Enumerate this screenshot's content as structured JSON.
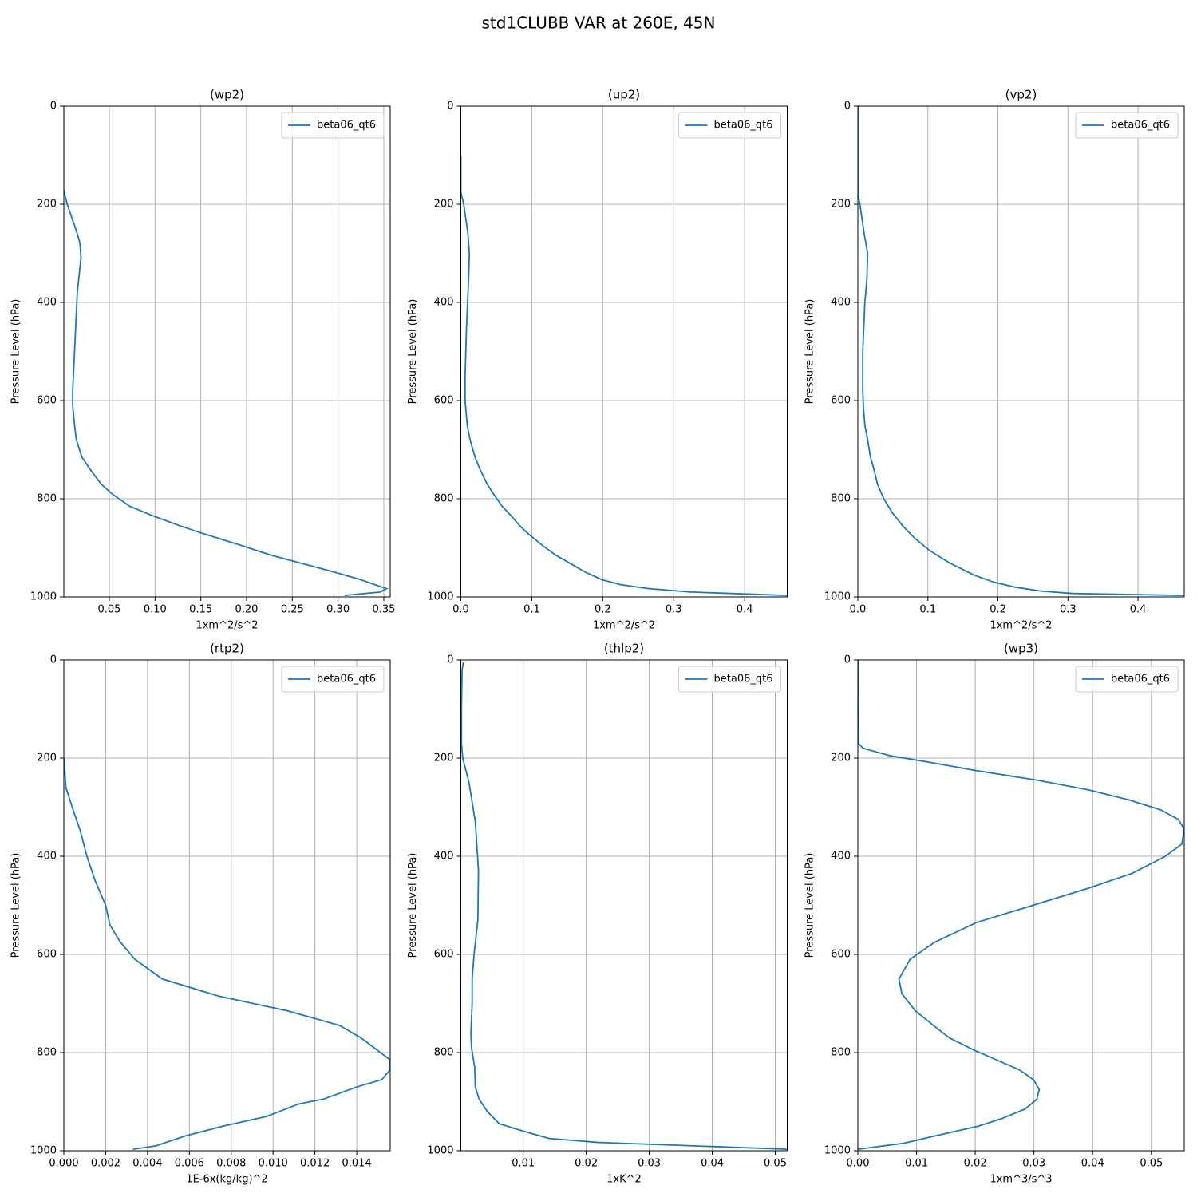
{
  "title": "std1CLUBB VAR at 260E, 45N",
  "chart_data": [
    {
      "type": "line",
      "title": "(wp2)",
      "xlabel": "1xm^2/s^2",
      "ylabel": "Pressure Level (hPa)",
      "y": [
        0,
        170,
        200,
        260,
        280,
        310,
        380,
        500,
        580,
        610,
        650,
        680,
        715,
        740,
        770,
        790,
        815,
        835,
        855,
        870,
        895,
        915,
        930,
        950,
        965,
        975,
        983,
        990,
        997
      ],
      "series": [
        {
          "name": "beta06_qt6",
          "color": "#1f77b4",
          "values": [
            0,
            0,
            0.004,
            0.015,
            0.018,
            0.019,
            0.015,
            0.012,
            0.01,
            0.01,
            0.012,
            0.014,
            0.02,
            0.029,
            0.041,
            0.053,
            0.072,
            0.098,
            0.127,
            0.151,
            0.194,
            0.227,
            0.257,
            0.297,
            0.325,
            0.34,
            0.353,
            0.346,
            0.307
          ]
        }
      ],
      "xlim": [
        0.0003,
        0.357
      ],
      "xticks": [
        0.05,
        {
          "value": 0.1,
          "label": "0.10"
        },
        0.15,
        {
          "value": 0.2,
          "label": "0.20"
        },
        0.25,
        {
          "value": 0.3,
          "label": "0.30"
        },
        0.35
      ],
      "ylim": [
        0,
        1000
      ],
      "yticks": [
        0,
        200,
        400,
        600,
        800,
        1000
      ],
      "y_inverted": true,
      "grid": true,
      "legend": "upper-right"
    },
    {
      "type": "line",
      "title": "(up2)",
      "xlabel": "1xm^2/s^2",
      "ylabel": "Pressure Level (hPa)",
      "y": [
        100,
        175,
        200,
        260,
        300,
        350,
        450,
        550,
        600,
        650,
        680,
        715,
        740,
        770,
        790,
        815,
        835,
        855,
        870,
        895,
        915,
        930,
        950,
        965,
        975,
        983,
        990,
        997
      ],
      "series": [
        {
          "name": "beta06_qt6",
          "color": "#1f77b4",
          "values": [
            0,
            0,
            0.004,
            0.01,
            0.012,
            0.011,
            0.008,
            0.006,
            0.006,
            0.009,
            0.013,
            0.02,
            0.027,
            0.037,
            0.046,
            0.058,
            0.071,
            0.083,
            0.094,
            0.115,
            0.134,
            0.152,
            0.176,
            0.199,
            0.225,
            0.264,
            0.324,
            0.46
          ]
        }
      ],
      "xlim": [
        0,
        0.46
      ],
      "xticks": [
        {
          "value": 0,
          "label": "0.0"
        },
        0.1,
        0.2,
        0.3,
        0.4
      ],
      "ylim": [
        0,
        1000
      ],
      "yticks": [
        0,
        200,
        400,
        600,
        800,
        1000
      ],
      "y_inverted": true,
      "grid": true,
      "legend": "upper-right"
    },
    {
      "type": "line",
      "title": "(vp2)",
      "xlabel": "1xm^2/s^2",
      "ylabel": "Pressure Level (hPa)",
      "y": [
        0,
        180,
        200,
        260,
        300,
        350,
        400,
        500,
        580,
        615,
        650,
        680,
        715,
        740,
        770,
        800,
        830,
        855,
        880,
        905,
        930,
        955,
        970,
        980,
        988,
        993,
        997
      ],
      "series": [
        {
          "name": "beta06_qt6",
          "color": "#1f77b4",
          "values": [
            0,
            0,
            0.003,
            0.009,
            0.014,
            0.013,
            0.01,
            0.007,
            0.007,
            0.008,
            0.01,
            0.014,
            0.018,
            0.023,
            0.028,
            0.037,
            0.05,
            0.064,
            0.081,
            0.102,
            0.13,
            0.165,
            0.194,
            0.224,
            0.261,
            0.307,
            0.466
          ]
        }
      ],
      "xlim": [
        0,
        0.466
      ],
      "xticks": [
        {
          "value": 0,
          "label": "0.0"
        },
        0.1,
        0.2,
        0.3,
        0.4
      ],
      "ylim": [
        0,
        1000
      ],
      "yticks": [
        0,
        200,
        400,
        600,
        800,
        1000
      ],
      "y_inverted": true,
      "grid": true,
      "legend": "upper-right"
    },
    {
      "type": "line",
      "title": "(rtp2)",
      "xlabel": "1E-6x(kg/kg)^2",
      "ylabel": "Pressure Level (hPa)",
      "y": [
        200,
        260,
        300,
        350,
        400,
        450,
        500,
        540,
        575,
        610,
        650,
        685,
        715,
        745,
        770,
        815,
        835,
        855,
        870,
        895,
        905,
        930,
        950,
        970,
        990,
        997
      ],
      "series": [
        {
          "name": "beta06_qt6",
          "color": "#1f77b4",
          "values": [
            0,
            0.0001,
            0.0004,
            0.0008,
            0.0011,
            0.0015,
            0.002,
            0.0022,
            0.0027,
            0.0034,
            0.0047,
            0.0074,
            0.0107,
            0.0132,
            0.0142,
            0.0156,
            0.0156,
            0.0152,
            0.014,
            0.0124,
            0.0112,
            0.0097,
            0.0076,
            0.0058,
            0.0044,
            0.0033
          ]
        }
      ],
      "xlim": [
        0,
        0.0156
      ],
      "xticks": [
        {
          "value": 0,
          "label": "0.000"
        },
        0.002,
        0.004,
        0.006,
        0.008,
        {
          "value": 0.01,
          "label": "0.010"
        },
        0.012,
        0.014
      ],
      "ylim": [
        0,
        1000
      ],
      "yticks": [
        0,
        200,
        400,
        600,
        800,
        1000
      ],
      "y_inverted": true,
      "grid": true,
      "legend": "upper-right"
    },
    {
      "type": "line",
      "title": "(thlp2)",
      "xlabel": "1xK^2",
      "ylabel": "Pressure Level (hPa)",
      "y": [
        5,
        20,
        100,
        170,
        200,
        250,
        330,
        430,
        530,
        600,
        650,
        700,
        760,
        790,
        830,
        870,
        895,
        920,
        945,
        960,
        975,
        983,
        990,
        997
      ],
      "series": [
        {
          "name": "beta06_qt6",
          "color": "#1f77b4",
          "values": [
            0.0005,
            0.0003,
            0.0002,
            0.0002,
            0.0004,
            0.0014,
            0.0024,
            0.0029,
            0.0028,
            0.0022,
            0.0019,
            0.0019,
            0.0017,
            0.0018,
            0.0023,
            0.0024,
            0.003,
            0.0043,
            0.0062,
            0.01,
            0.0141,
            0.0219,
            0.0371,
            0.0519
          ]
        }
      ],
      "xlim": [
        0.0001,
        0.0519
      ],
      "xticks": [
        0.01,
        0.02,
        0.03,
        0.04,
        0.05
      ],
      "ylim": [
        0,
        1000
      ],
      "yticks": [
        0,
        200,
        400,
        600,
        800,
        1000
      ],
      "y_inverted": true,
      "grid": true,
      "legend": "upper-right"
    },
    {
      "type": "line",
      "title": "(wp3)",
      "xlabel": "1xm^3/s^3",
      "ylabel": "Pressure Level (hPa)",
      "y": [
        0,
        170,
        180,
        195,
        210,
        225,
        245,
        265,
        285,
        305,
        325,
        345,
        375,
        400,
        435,
        465,
        500,
        535,
        575,
        610,
        650,
        680,
        715,
        745,
        770,
        795,
        835,
        855,
        875,
        895,
        915,
        935,
        950,
        970,
        985,
        997
      ],
      "series": [
        {
          "name": "beta06_qt6",
          "color": "#1f77b4",
          "values": [
            0,
            0.0001,
            0.0009,
            0.0054,
            0.0129,
            0.0199,
            0.0305,
            0.0394,
            0.0461,
            0.0515,
            0.0546,
            0.0556,
            0.0552,
            0.0524,
            0.0467,
            0.0393,
            0.0298,
            0.0202,
            0.0131,
            0.0089,
            0.007,
            0.0075,
            0.0098,
            0.0129,
            0.0156,
            0.0198,
            0.0275,
            0.0299,
            0.0309,
            0.0305,
            0.0285,
            0.0244,
            0.0205,
            0.0131,
            0.0077,
            0
          ]
        }
      ],
      "xlim": [
        0,
        0.0556
      ],
      "xticks": [
        {
          "value": 0,
          "label": "0.00"
        },
        {
          "value": 0.01,
          "label": "0.01"
        },
        {
          "value": 0.02,
          "label": "0.02"
        },
        {
          "value": 0.03,
          "label": "0.03"
        },
        {
          "value": 0.04,
          "label": "0.04"
        },
        {
          "value": 0.05,
          "label": "0.05"
        }
      ],
      "ylim": [
        0,
        1000
      ],
      "yticks": [
        0,
        200,
        400,
        600,
        800,
        1000
      ],
      "y_inverted": true,
      "grid": true,
      "legend": "upper-right"
    }
  ]
}
